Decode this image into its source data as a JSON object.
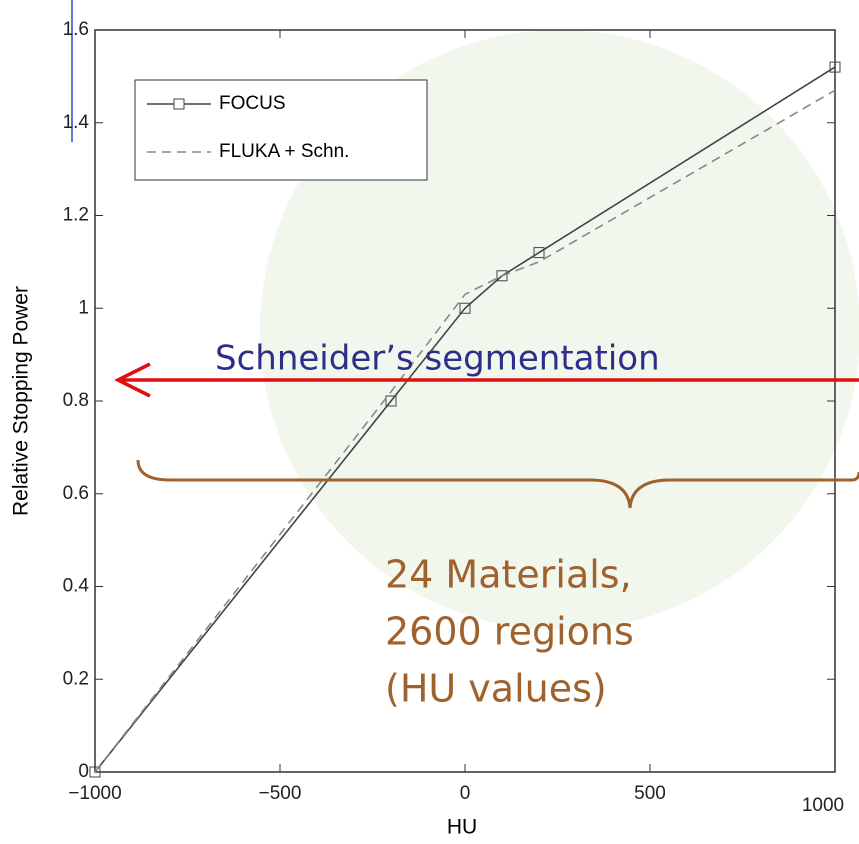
{
  "chart_data": {
    "type": "line",
    "x_label": "HU",
    "y_label": "Relative Stopping Power",
    "x": [
      -1000,
      -200,
      0,
      100,
      200,
      1000
    ],
    "series": [
      {
        "name": "FOCUS",
        "color": "#444444",
        "style": "solid",
        "marker": "square",
        "values": [
          0,
          0.8,
          1.0,
          1.07,
          1.12,
          1.52
        ]
      },
      {
        "name": "FLUKA + Schn.",
        "color": "#888888",
        "style": "dashed",
        "values": [
          0,
          0.82,
          1.03,
          1.07,
          1.1,
          1.47
        ]
      }
    ],
    "xlim": [
      -1000,
      1000
    ],
    "ylim": [
      0,
      1.6
    ],
    "xticks": [
      {
        "value": -1000,
        "label": "−1000"
      },
      {
        "value": -500,
        "label": "−500"
      },
      0,
      500,
      1000
    ],
    "yticks": [
      0,
      0.2,
      0.4,
      0.6,
      0.8,
      1,
      1.2,
      1.4,
      1.6
    ],
    "legend": "upper left",
    "annotations": [
      {
        "text": "Schneider’s segmentation",
        "color": "#2e2e8a"
      },
      {
        "text": "24 Materials,",
        "color": "#a0622d"
      },
      {
        "text": "2600 regions",
        "color": "#a0622d"
      },
      {
        "text": "(HU values)",
        "color": "#a0622d"
      }
    ]
  }
}
